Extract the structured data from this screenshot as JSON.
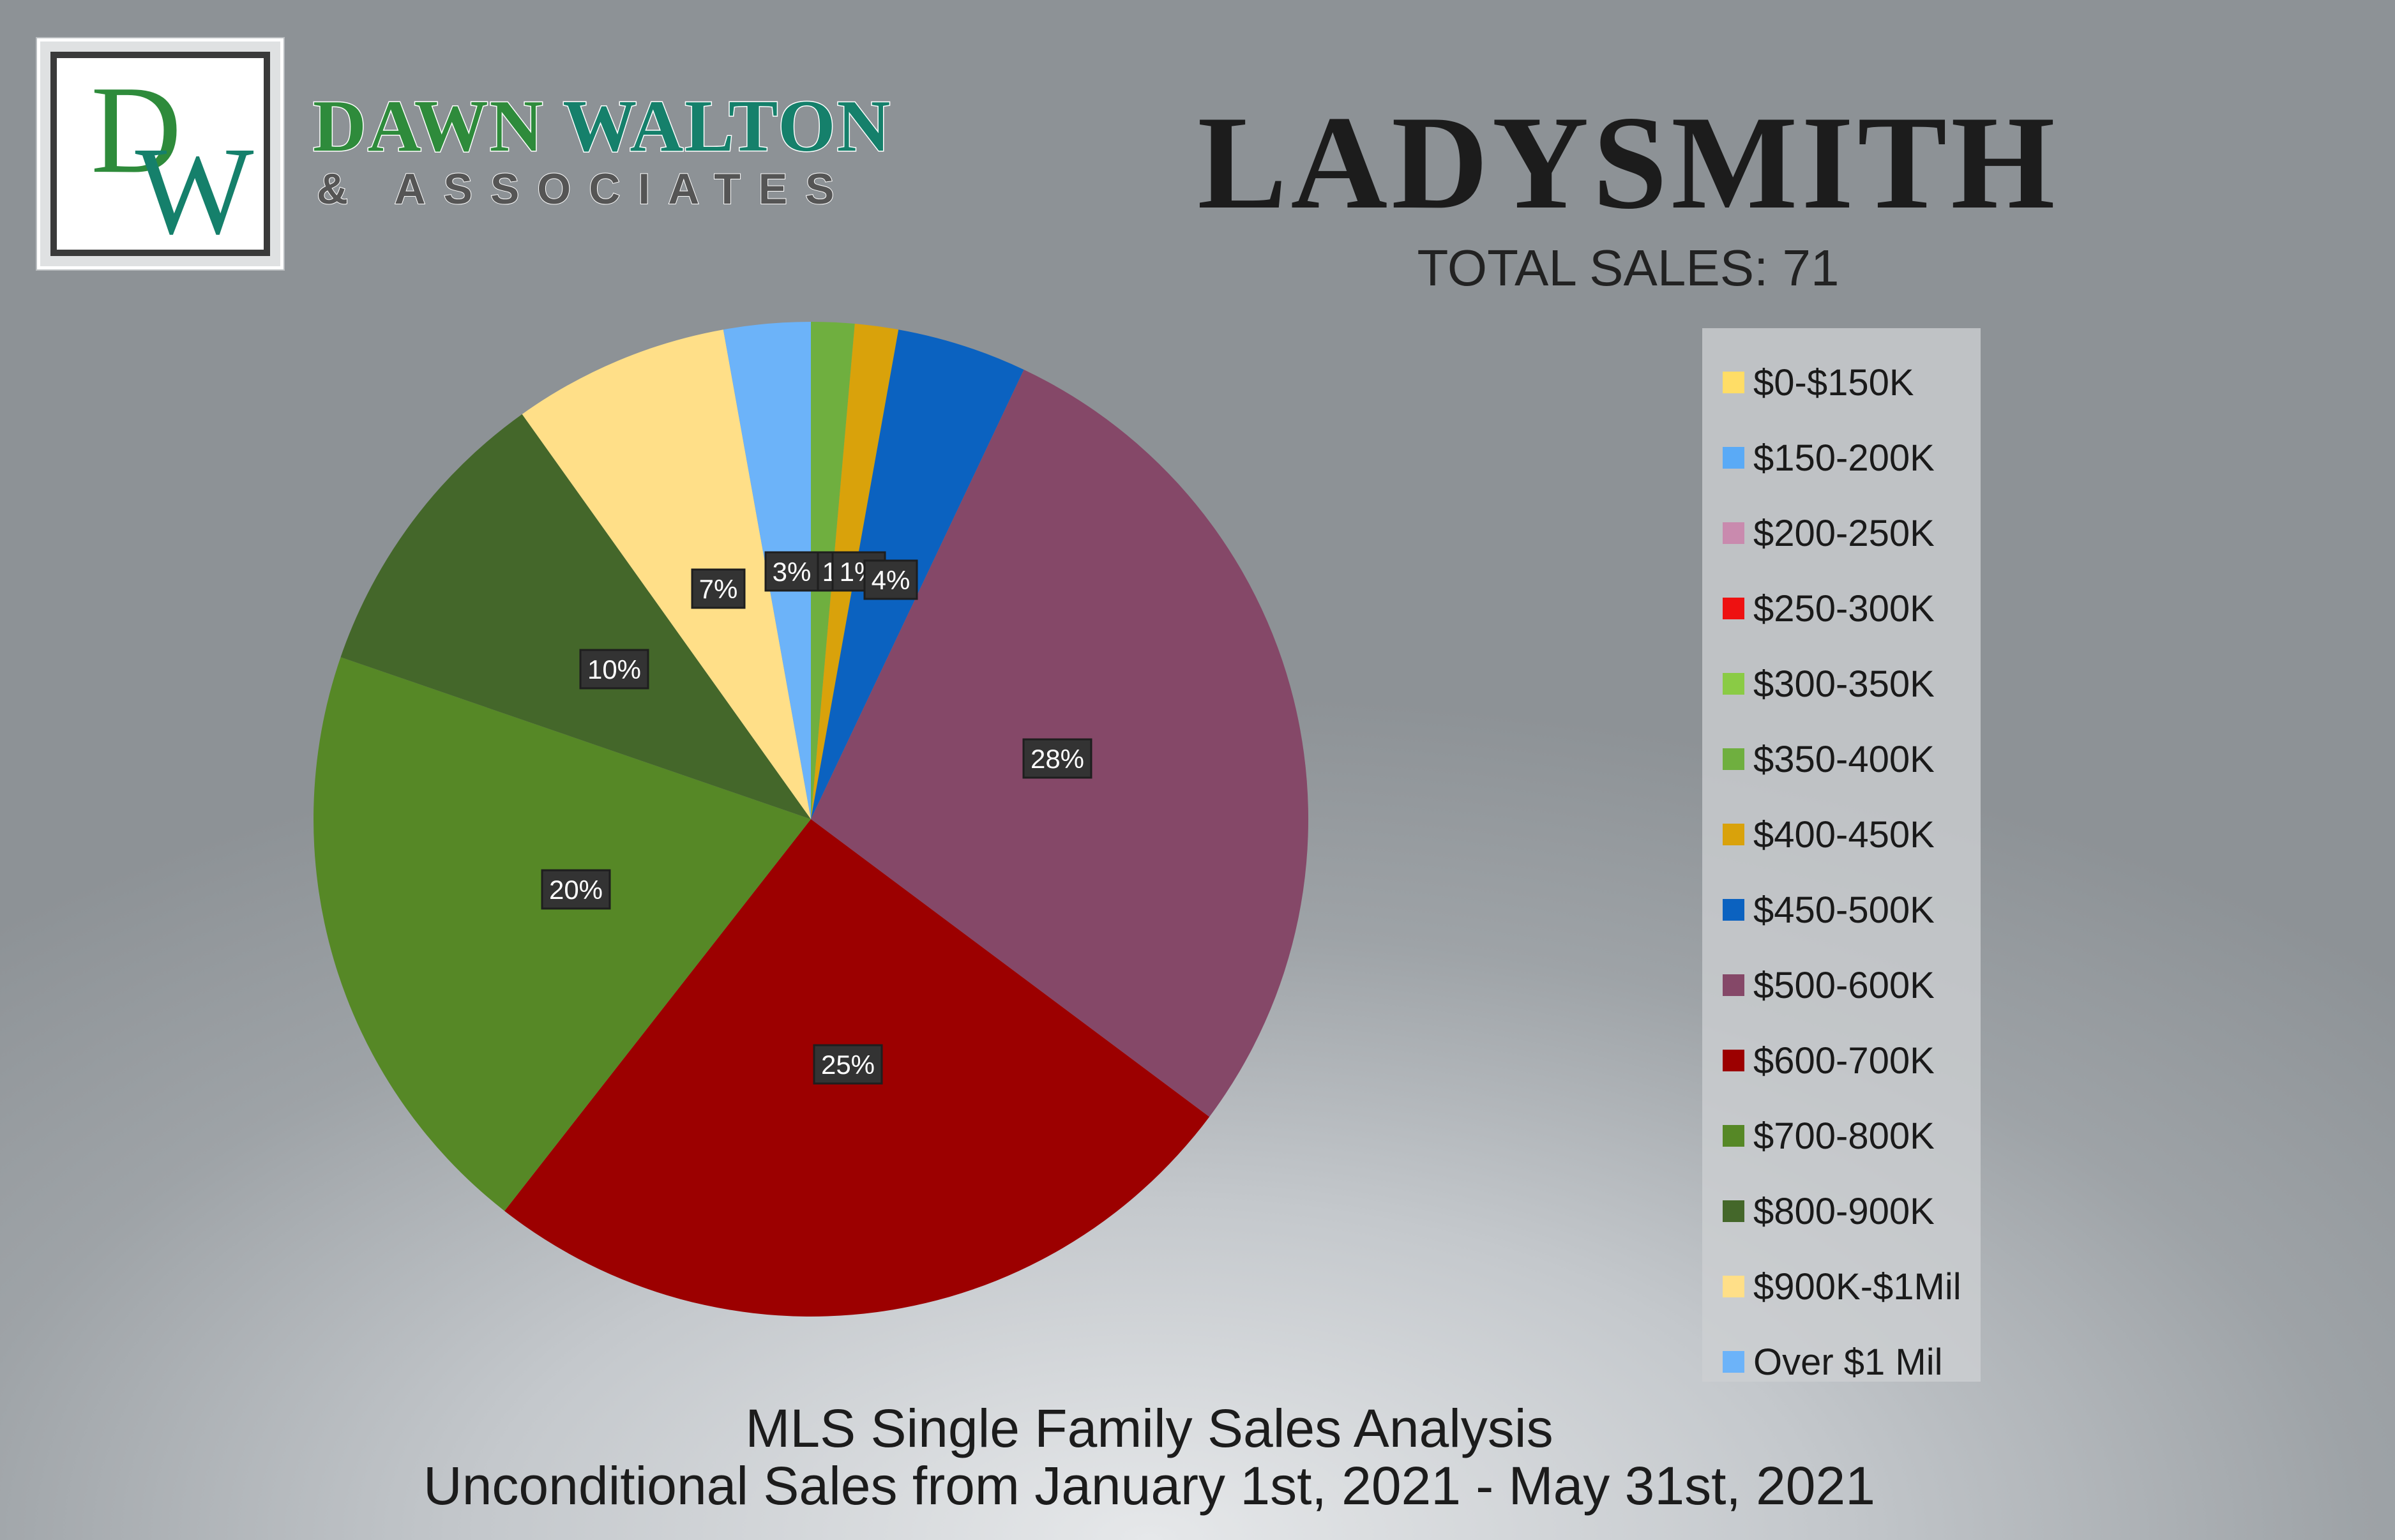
{
  "logo": {
    "monogram": "DW",
    "name_first": "DAWN",
    "name_last": "WALTON",
    "tagline": "& ASSOCIATES"
  },
  "header": {
    "title": "LADYSMITH",
    "total_sales": "TOTAL SALES: 71"
  },
  "footer": {
    "line1": "MLS Single Family Sales Analysis",
    "line2": "Unconditional Sales from January 1st, 2021 - May 31st, 2021"
  },
  "chart_data": {
    "type": "pie",
    "title": "LADYSMITH",
    "subtitle": "TOTAL SALES: 71",
    "legend_position": "right",
    "slices": [
      {
        "label": "$0-$150K",
        "value": 0,
        "percent_label": "",
        "color": "#FFDD66"
      },
      {
        "label": "$150-200K",
        "value": 0,
        "percent_label": "",
        "color": "#5AAAF6"
      },
      {
        "label": "$200-250K",
        "value": 0,
        "percent_label": "",
        "color": "#C98AAE"
      },
      {
        "label": "$250-300K",
        "value": 0,
        "percent_label": "",
        "color": "#EE1111"
      },
      {
        "label": "$300-350K",
        "value": 0,
        "percent_label": "",
        "color": "#8ACB45"
      },
      {
        "label": "$350-400K",
        "value": 1,
        "percent_label": "1%",
        "color": "#6FAF3F"
      },
      {
        "label": "$400-450K",
        "value": 1,
        "percent_label": "1%",
        "color": "#D9A20B"
      },
      {
        "label": "$450-500K",
        "value": 3,
        "percent_label": "4%",
        "color": "#0B62C0"
      },
      {
        "label": "$500-600K",
        "value": 20,
        "percent_label": "28%",
        "color": "#854868"
      },
      {
        "label": "$600-700K",
        "value": 18,
        "percent_label": "25%",
        "color": "#9C0000"
      },
      {
        "label": "$700-800K",
        "value": 14,
        "percent_label": "20%",
        "color": "#568826"
      },
      {
        "label": "$800-900K",
        "value": 7,
        "percent_label": "10%",
        "color": "#44672A"
      },
      {
        "label": "$900K-$1Mil",
        "value": 5,
        "percent_label": "7%",
        "color": "#FFDF88"
      },
      {
        "label": "Over $1 Mil",
        "value": 2,
        "percent_label": "3%",
        "color": "#6CB3F9"
      }
    ]
  }
}
